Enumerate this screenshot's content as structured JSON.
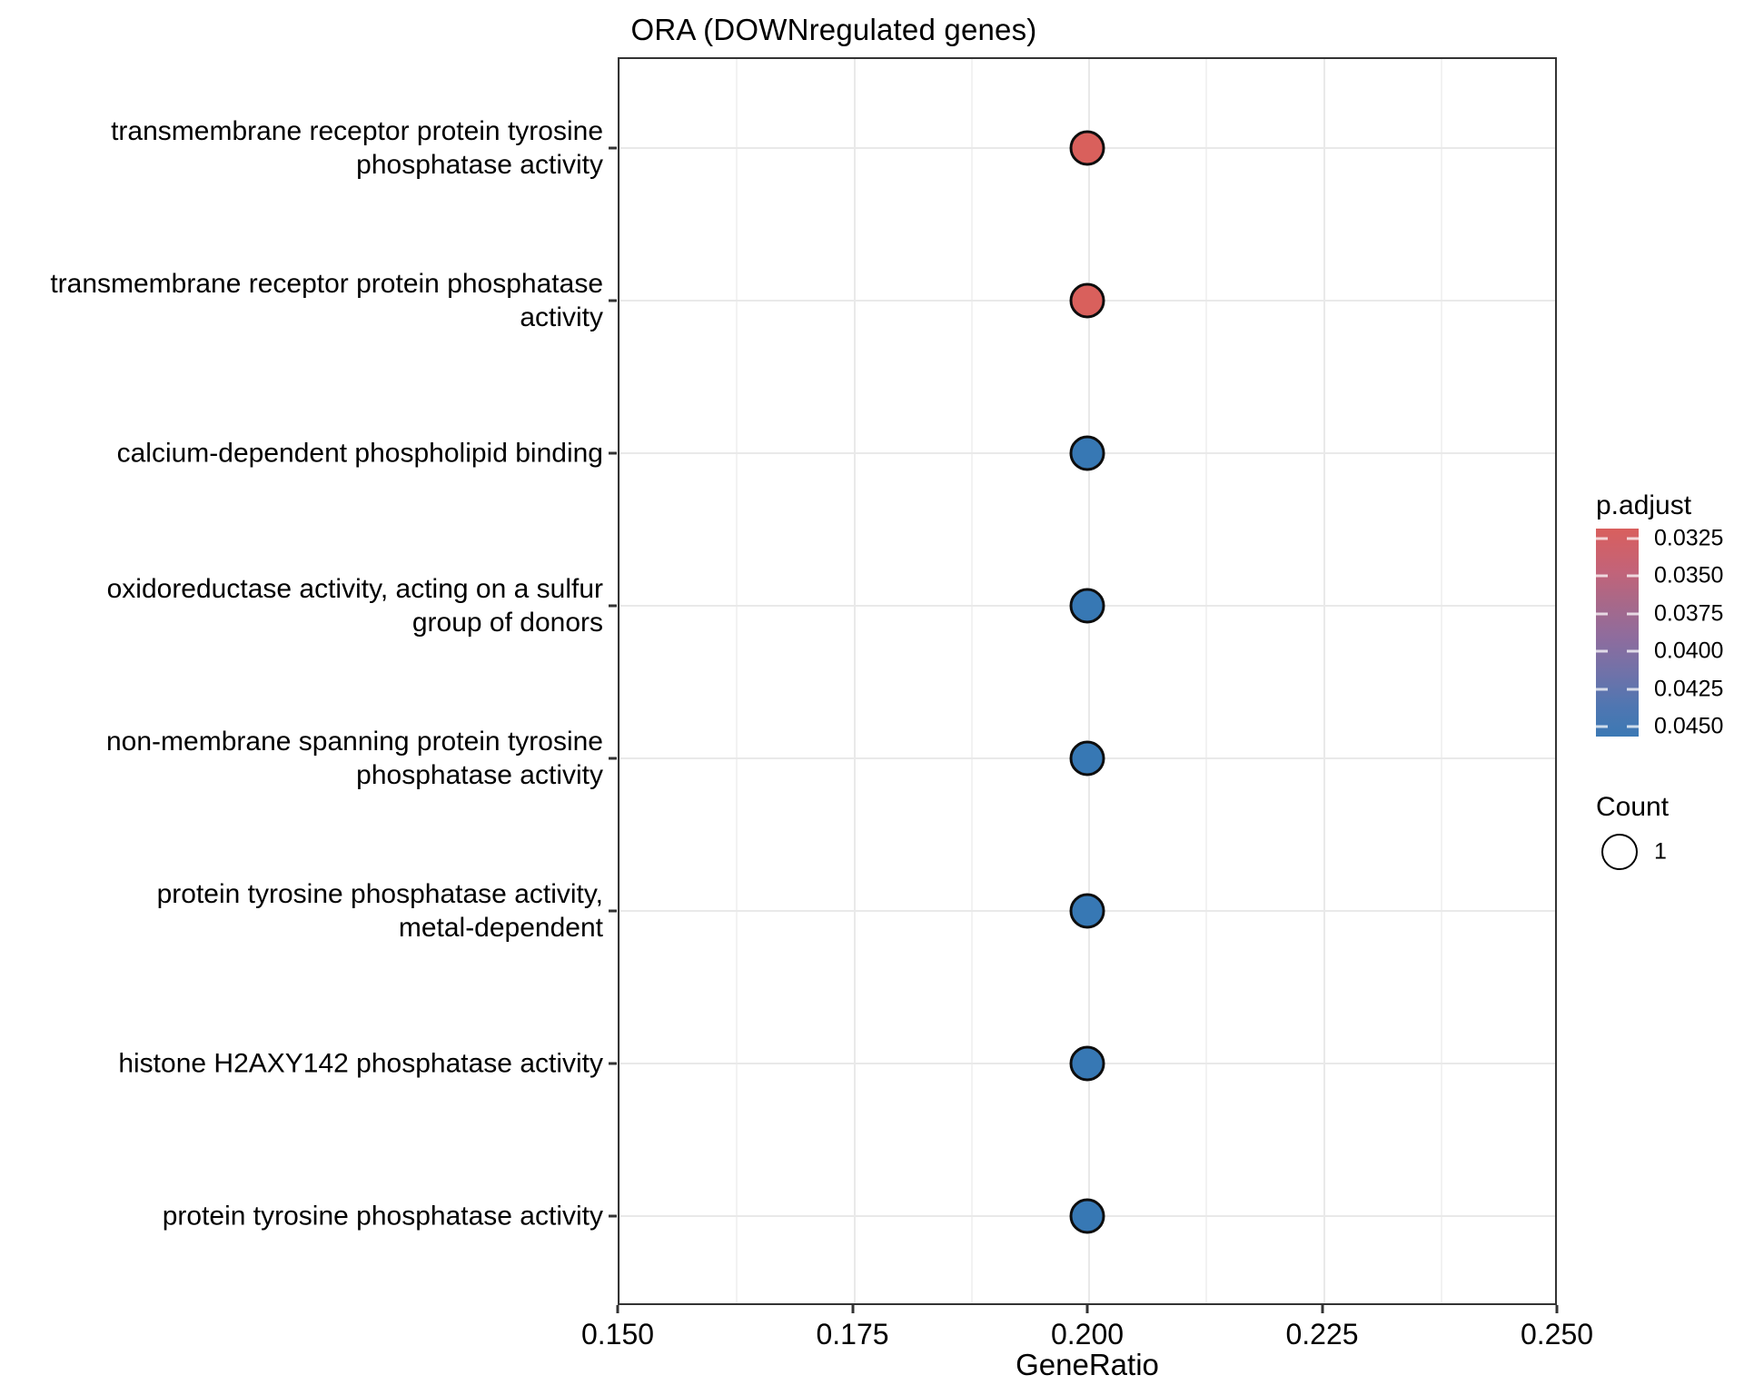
{
  "title": "ORA (DOWNregulated genes)",
  "chart_data": {
    "type": "scatter",
    "subtype": "enrichment-dotplot",
    "title": "ORA (DOWNregulated genes)",
    "xlabel": "GeneRatio",
    "ylabel": "",
    "xlim": [
      0.15,
      0.25
    ],
    "x_ticks": [
      0.15,
      0.175,
      0.2,
      0.225,
      0.25
    ],
    "x_tick_labels": [
      "0.150",
      "0.175",
      "0.200",
      "0.225",
      "0.250"
    ],
    "x_minor_ticks": [
      0.1625,
      0.1875,
      0.2125,
      0.2375
    ],
    "grid": "on",
    "categories": [
      "transmembrane receptor protein tyrosine phosphatase activity",
      "transmembrane receptor protein phosphatase activity",
      "calcium-dependent phospholipid binding",
      "oxidoreductase activity, acting on a sulfur group of donors",
      "non-membrane spanning protein tyrosine phosphatase activity",
      "protein tyrosine phosphatase activity, metal-dependent",
      "histone H2AXY142 phosphatase activity",
      "protein tyrosine phosphatase activity"
    ],
    "category_label_lines": [
      [
        "transmembrane receptor protein tyrosine",
        "phosphatase activity"
      ],
      [
        "transmembrane receptor protein phosphatase",
        "activity"
      ],
      [
        "calcium-dependent phospholipid binding"
      ],
      [
        "oxidoreductase activity, acting on a sulfur",
        "group of donors"
      ],
      [
        "non-membrane spanning protein tyrosine",
        "phosphatase activity"
      ],
      [
        "protein tyrosine phosphatase activity,",
        "metal-dependent"
      ],
      [
        "histone H2AXY142 phosphatase activity"
      ],
      [
        "protein tyrosine phosphatase activity"
      ]
    ],
    "points": [
      {
        "gene_ratio": 0.2,
        "count": 1,
        "p_adjust_approx": 0.032,
        "dot_color": "#d9605c"
      },
      {
        "gene_ratio": 0.2,
        "count": 1,
        "p_adjust_approx": 0.032,
        "dot_color": "#d9605c"
      },
      {
        "gene_ratio": 0.2,
        "count": 1,
        "p_adjust_approx": 0.0455,
        "dot_color": "#3778b4"
      },
      {
        "gene_ratio": 0.2,
        "count": 1,
        "p_adjust_approx": 0.0455,
        "dot_color": "#3778b4"
      },
      {
        "gene_ratio": 0.2,
        "count": 1,
        "p_adjust_approx": 0.0455,
        "dot_color": "#3778b4"
      },
      {
        "gene_ratio": 0.2,
        "count": 1,
        "p_adjust_approx": 0.0455,
        "dot_color": "#3778b4"
      },
      {
        "gene_ratio": 0.2,
        "count": 1,
        "p_adjust_approx": 0.0455,
        "dot_color": "#3778b4"
      },
      {
        "gene_ratio": 0.2,
        "count": 1,
        "p_adjust_approx": 0.0455,
        "dot_color": "#3778b4"
      }
    ],
    "legend": {
      "position": "right",
      "p_adjust": {
        "title": "p.adjust",
        "tick_labels": [
          "0.0325",
          "0.0350",
          "0.0375",
          "0.0400",
          "0.0425",
          "0.0450"
        ],
        "top_color": "#d95f5d",
        "mid_color": "#8f6c9d",
        "bottom_color": "#3c79b4"
      },
      "count": {
        "title": "Count",
        "items": [
          {
            "label": "1"
          }
        ]
      }
    }
  },
  "colors": {
    "red_dot": "#d9605c",
    "blue_dot": "#3778b4",
    "grid_major": "#e9e9e9",
    "grid_minor": "#f2f2f2",
    "panel_border": "#333333",
    "text": "#000000"
  }
}
